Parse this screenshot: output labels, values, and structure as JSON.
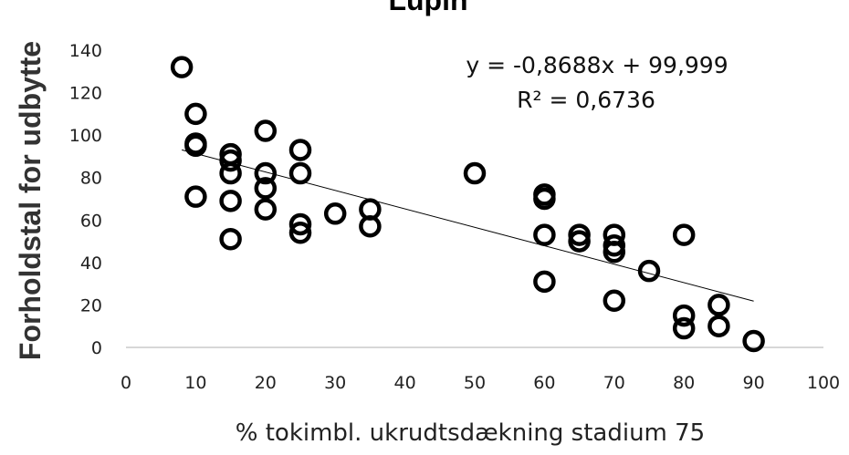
{
  "chart_data": {
    "type": "scatter",
    "title": "Lupin",
    "xlabel": "% tokimbl. ukrudtsdækning stadium 75",
    "ylabel": "Forholdstal for udbytte",
    "xlim": [
      0,
      100
    ],
    "ylim": [
      0,
      140
    ],
    "x_ticks": [
      "0",
      "10",
      "20",
      "30",
      "40",
      "50",
      "60",
      "70",
      "80",
      "90",
      "100"
    ],
    "y_ticks": [
      "0",
      "20",
      "40",
      "60",
      "80",
      "100",
      "120",
      "140"
    ],
    "grid": false,
    "legend": "none",
    "marker_color": "#000000",
    "trendline": {
      "slope": -0.8688,
      "intercept": 99.999,
      "equation_label": "y = -0,8688x + 99,999",
      "r2_label": "R² = 0,6736"
    },
    "points": [
      {
        "x": 8,
        "y": 132
      },
      {
        "x": 10,
        "y": 110
      },
      {
        "x": 10,
        "y": 96
      },
      {
        "x": 10,
        "y": 95
      },
      {
        "x": 10,
        "y": 71
      },
      {
        "x": 15,
        "y": 91
      },
      {
        "x": 15,
        "y": 88
      },
      {
        "x": 15,
        "y": 82
      },
      {
        "x": 15,
        "y": 69
      },
      {
        "x": 15,
        "y": 51
      },
      {
        "x": 20,
        "y": 102
      },
      {
        "x": 20,
        "y": 82
      },
      {
        "x": 20,
        "y": 75
      },
      {
        "x": 20,
        "y": 65
      },
      {
        "x": 25,
        "y": 93
      },
      {
        "x": 25,
        "y": 82
      },
      {
        "x": 25,
        "y": 58
      },
      {
        "x": 25,
        "y": 54
      },
      {
        "x": 30,
        "y": 63
      },
      {
        "x": 35,
        "y": 65
      },
      {
        "x": 35,
        "y": 57
      },
      {
        "x": 50,
        "y": 82
      },
      {
        "x": 60,
        "y": 72
      },
      {
        "x": 60,
        "y": 70
      },
      {
        "x": 60,
        "y": 53
      },
      {
        "x": 60,
        "y": 31
      },
      {
        "x": 65,
        "y": 53
      },
      {
        "x": 65,
        "y": 50
      },
      {
        "x": 70,
        "y": 53
      },
      {
        "x": 70,
        "y": 48
      },
      {
        "x": 70,
        "y": 45
      },
      {
        "x": 70,
        "y": 22
      },
      {
        "x": 75,
        "y": 36
      },
      {
        "x": 80,
        "y": 53
      },
      {
        "x": 80,
        "y": 15
      },
      {
        "x": 80,
        "y": 9
      },
      {
        "x": 85,
        "y": 20
      },
      {
        "x": 85,
        "y": 10
      },
      {
        "x": 90,
        "y": 3
      }
    ]
  }
}
